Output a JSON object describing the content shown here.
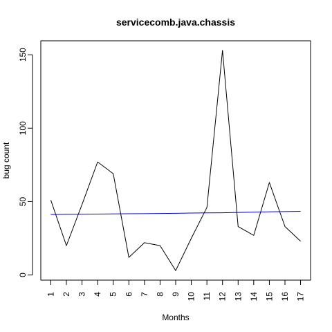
{
  "chart_data": {
    "type": "line",
    "title": "servicecomb.java.chassis",
    "xlabel": "Months",
    "ylabel": "bug count",
    "x": [
      1,
      2,
      3,
      4,
      5,
      6,
      7,
      8,
      9,
      10,
      11,
      12,
      13,
      14,
      15,
      16,
      17
    ],
    "x_tick_labels": [
      "1",
      "2",
      "3",
      "4",
      "5",
      "6",
      "7",
      "8",
      "9",
      "10",
      "11",
      "12",
      "13",
      "14",
      "15",
      "16",
      "17"
    ],
    "y_ticks": [
      0,
      50,
      100,
      150
    ],
    "y_tick_labels": [
      "0",
      "50",
      "100",
      "150"
    ],
    "xlim": [
      0.36,
      17.64
    ],
    "ylim": [
      -3.5,
      159.5
    ],
    "grid": false,
    "series": [
      {
        "values": [
          51,
          20,
          48,
          77,
          69,
          12,
          22,
          20,
          3,
          25,
          46,
          153,
          33,
          27,
          63,
          33,
          23
        ],
        "color": "#000000"
      },
      {
        "values": [
          41.2,
          41.3,
          41.4,
          41.5,
          41.6,
          41.7,
          41.8,
          41.9,
          42.0,
          42.2,
          42.3,
          42.4,
          42.6,
          42.8,
          43.0,
          43.2,
          43.4
        ],
        "color": "#0000cc"
      }
    ]
  }
}
